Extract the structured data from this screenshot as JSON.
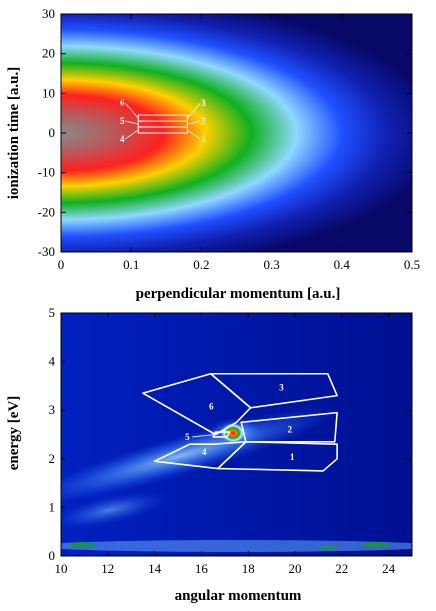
{
  "chart_data": [
    {
      "type": "heatmap",
      "xlabel": "perpendicular momentum [a.u.]",
      "ylabel": "ionization time [a.u.]",
      "xlim": [
        0,
        0.5
      ],
      "ylim": [
        -30,
        30
      ],
      "xticks": [
        "0",
        "0.1",
        "0.2",
        "0.3",
        "0.4",
        "0.5"
      ],
      "yticks": [
        "-30",
        "-20",
        "-10",
        "0",
        "10",
        "20",
        "30"
      ],
      "colormap": [
        "#0a0a80",
        "#2040ff",
        "#7fd0ff",
        "#10a020",
        "#ffd000",
        "#ff2000",
        "#808080"
      ],
      "peak": {
        "x": 0,
        "y": 0
      },
      "regions": [
        {
          "label": "1",
          "x": [
            0.11,
            0.18
          ],
          "y": [
            0,
            1.5
          ]
        },
        {
          "label": "2",
          "x": [
            0.11,
            0.18
          ],
          "y": [
            1.5,
            3
          ]
        },
        {
          "label": "3",
          "x": [
            0.11,
            0.18
          ],
          "y": [
            3,
            4.5
          ]
        },
        {
          "label": "4",
          "x": [
            0.11,
            0.18
          ],
          "y": [
            0,
            1.5
          ]
        },
        {
          "label": "5",
          "x": [
            0.11,
            0.18
          ],
          "y": [
            1.5,
            3
          ]
        },
        {
          "label": "6",
          "x": [
            0.11,
            0.18
          ],
          "y": [
            3,
            4.5
          ]
        }
      ]
    },
    {
      "type": "heatmap",
      "xlabel": "angular momentum",
      "ylabel": "energy [eV]",
      "xlim": [
        10,
        25
      ],
      "ylim": [
        0,
        5
      ],
      "xticks": [
        "10",
        "12",
        "14",
        "16",
        "18",
        "20",
        "22",
        "24"
      ],
      "yticks": [
        "0",
        "1",
        "2",
        "3",
        "4",
        "5"
      ],
      "colormap": [
        "#000088",
        "#1030d0",
        "#4080ff",
        "#c0f0ff",
        "#10a020",
        "#ff2000"
      ],
      "peak": {
        "x": 17.3,
        "y": 2.5
      },
      "regions": [
        {
          "label": "1",
          "polygon": [
            [
              17.9,
              2.35
            ],
            [
              21.8,
              2.3
            ],
            [
              21.8,
              2.0
            ],
            [
              21.2,
              1.75
            ],
            [
              16.7,
              1.8
            ]
          ]
        },
        {
          "label": "2",
          "polygon": [
            [
              17.7,
              2.75
            ],
            [
              21.8,
              2.95
            ],
            [
              21.7,
              2.35
            ],
            [
              17.9,
              2.35
            ]
          ]
        },
        {
          "label": "3",
          "polygon": [
            [
              18.1,
              3.05
            ],
            [
              21.8,
              3.3
            ],
            [
              21.4,
              3.75
            ],
            [
              16.4,
              3.75
            ]
          ]
        },
        {
          "label": "4",
          "polygon": [
            [
              14.0,
              1.95
            ],
            [
              16.7,
              1.8
            ],
            [
              17.9,
              2.35
            ],
            [
              16.5,
              2.3
            ],
            [
              15.5,
              2.3
            ]
          ]
        },
        {
          "label": "5",
          "polygon": [
            [
              16.5,
              2.45
            ],
            [
              17.1,
              2.45
            ],
            [
              17.2,
              2.55
            ],
            [
              16.6,
              2.55
            ]
          ]
        },
        {
          "label": "6",
          "polygon": [
            [
              13.5,
              3.35
            ],
            [
              16.4,
              3.75
            ],
            [
              18.1,
              3.05
            ],
            [
              17.5,
              2.75
            ],
            [
              16.6,
              2.5
            ]
          ]
        }
      ]
    }
  ]
}
